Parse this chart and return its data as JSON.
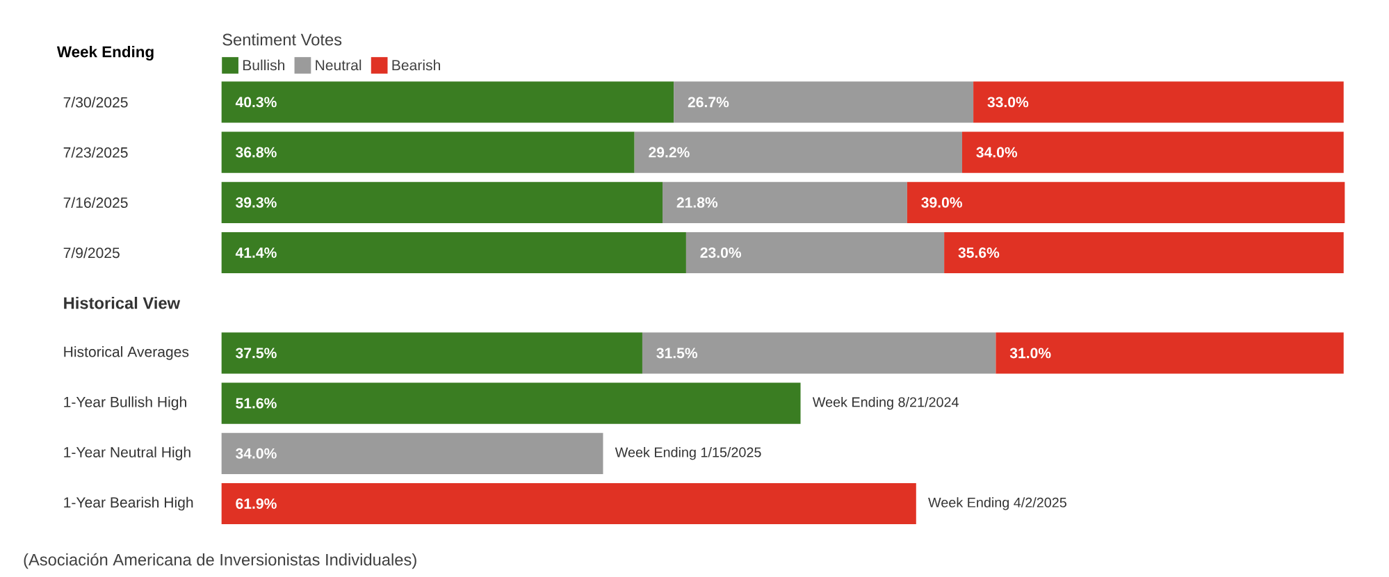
{
  "chart_data": {
    "type": "bar",
    "orientation": "horizontal",
    "stacked": true,
    "ylabel": "Week Ending",
    "legend_title": "Sentiment Votes",
    "legend": "top left",
    "tick_labels": "y",
    "categories": [
      "7/30/2025",
      "7/23/2025",
      "7/16/2025",
      "7/9/2025",
      "Historical View",
      "Historical Averages",
      "1-Year Bullish High",
      "1-Year Neutral High",
      "1-Year Bearish High"
    ],
    "xlim": [
      0,
      100
    ],
    "series": [
      {
        "name": "Bullish",
        "color": "#3a7d22",
        "values": [
          40.3,
          36.8,
          39.3,
          41.4,
          null,
          37.5,
          51.6,
          null,
          null
        ],
        "value_labels": [
          "40.3%",
          "36.8%",
          "39.3%",
          "41.4%",
          null,
          "37.5%",
          "51.6%",
          null,
          null
        ]
      },
      {
        "name": "Neutral",
        "color": "#9b9b9b",
        "values": [
          26.7,
          29.2,
          21.8,
          23.0,
          null,
          31.5,
          null,
          34.0,
          null
        ],
        "value_labels": [
          "26.7%",
          "29.2%",
          "21.8%",
          "23.0%",
          null,
          "31.5%",
          null,
          "34.0%",
          null
        ]
      },
      {
        "name": "Bearish",
        "color": "#e03224",
        "values": [
          33.0,
          34.0,
          39.0,
          35.6,
          null,
          31.0,
          null,
          null,
          61.9
        ],
        "value_labels": [
          "33.0%",
          "34.0%",
          "39.0%",
          "35.6%",
          null,
          "31.0%",
          null,
          null,
          "61.9%"
        ]
      }
    ],
    "annotations": [
      {
        "text": "Week Ending 8/21/2024",
        "x": 51.6,
        "y": "1-Year Bullish High"
      },
      {
        "text": "Week Ending 1/15/2025",
        "x": 34.0,
        "y": "1-Year Neutral High"
      },
      {
        "text": "Week Ending 4/2/2025",
        "x": 61.9,
        "y": "1-Year Bearish High"
      },
      "(Asociación Americana de Inversionistas Individuales)"
    ]
  }
}
